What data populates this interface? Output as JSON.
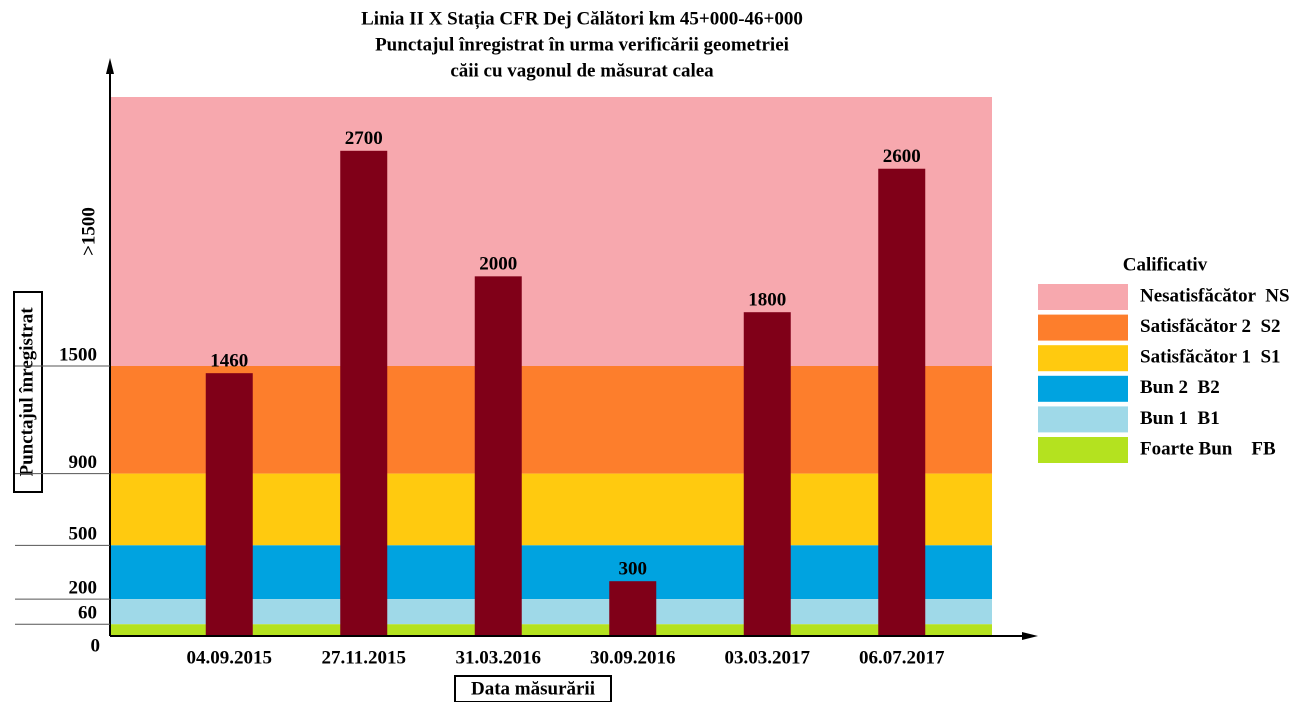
{
  "chart_data": {
    "type": "bar",
    "title": "Linia II X Stația CFR Dej Călători km 45+000-46+000",
    "subtitle": [
      "Punctajul înregistrat în urma verificării geometriei",
      "căii cu vagonul de măsurat calea"
    ],
    "x_label": "Data măsurării",
    "y_label": "Punctajul înregistrat",
    "categories": [
      "04.09.2015",
      "27.11.2015",
      "31.03.2016",
      "30.09.2016",
      "03.03.2017",
      "06.07.2017"
    ],
    "values": [
      1460,
      2700,
      2000,
      300,
      1800,
      2600
    ],
    "color": "#800018",
    "ylim": [
      0,
      3000
    ],
    "yticks": [
      0,
      60,
      200,
      500,
      900,
      1500,
      {
        "value": 2250,
        "label": ">1500"
      }
    ],
    "legend_title": "Calificativ",
    "bands": [
      {
        "name": "Nesatisfăcător  NS",
        "from": 1500,
        "to": 3000,
        "color": "#f7a8ae"
      },
      {
        "name": "Satisfăcător 2  S2",
        "from": 900,
        "to": 1500,
        "color": "#fd7e2c"
      },
      {
        "name": "Satisfăcător 1  S1",
        "from": 500,
        "to": 900,
        "color": "#ffca0f"
      },
      {
        "name": "Bun 2  B2",
        "from": 200,
        "to": 500,
        "color": "#00a3e0"
      },
      {
        "name": "Bun 1  B1",
        "from": 60,
        "to": 200,
        "color": "#9fd9e8"
      },
      {
        "name": "Foarte Bun    FB",
        "from": 0,
        "to": 60,
        "color": "#b4e21f"
      }
    ]
  }
}
